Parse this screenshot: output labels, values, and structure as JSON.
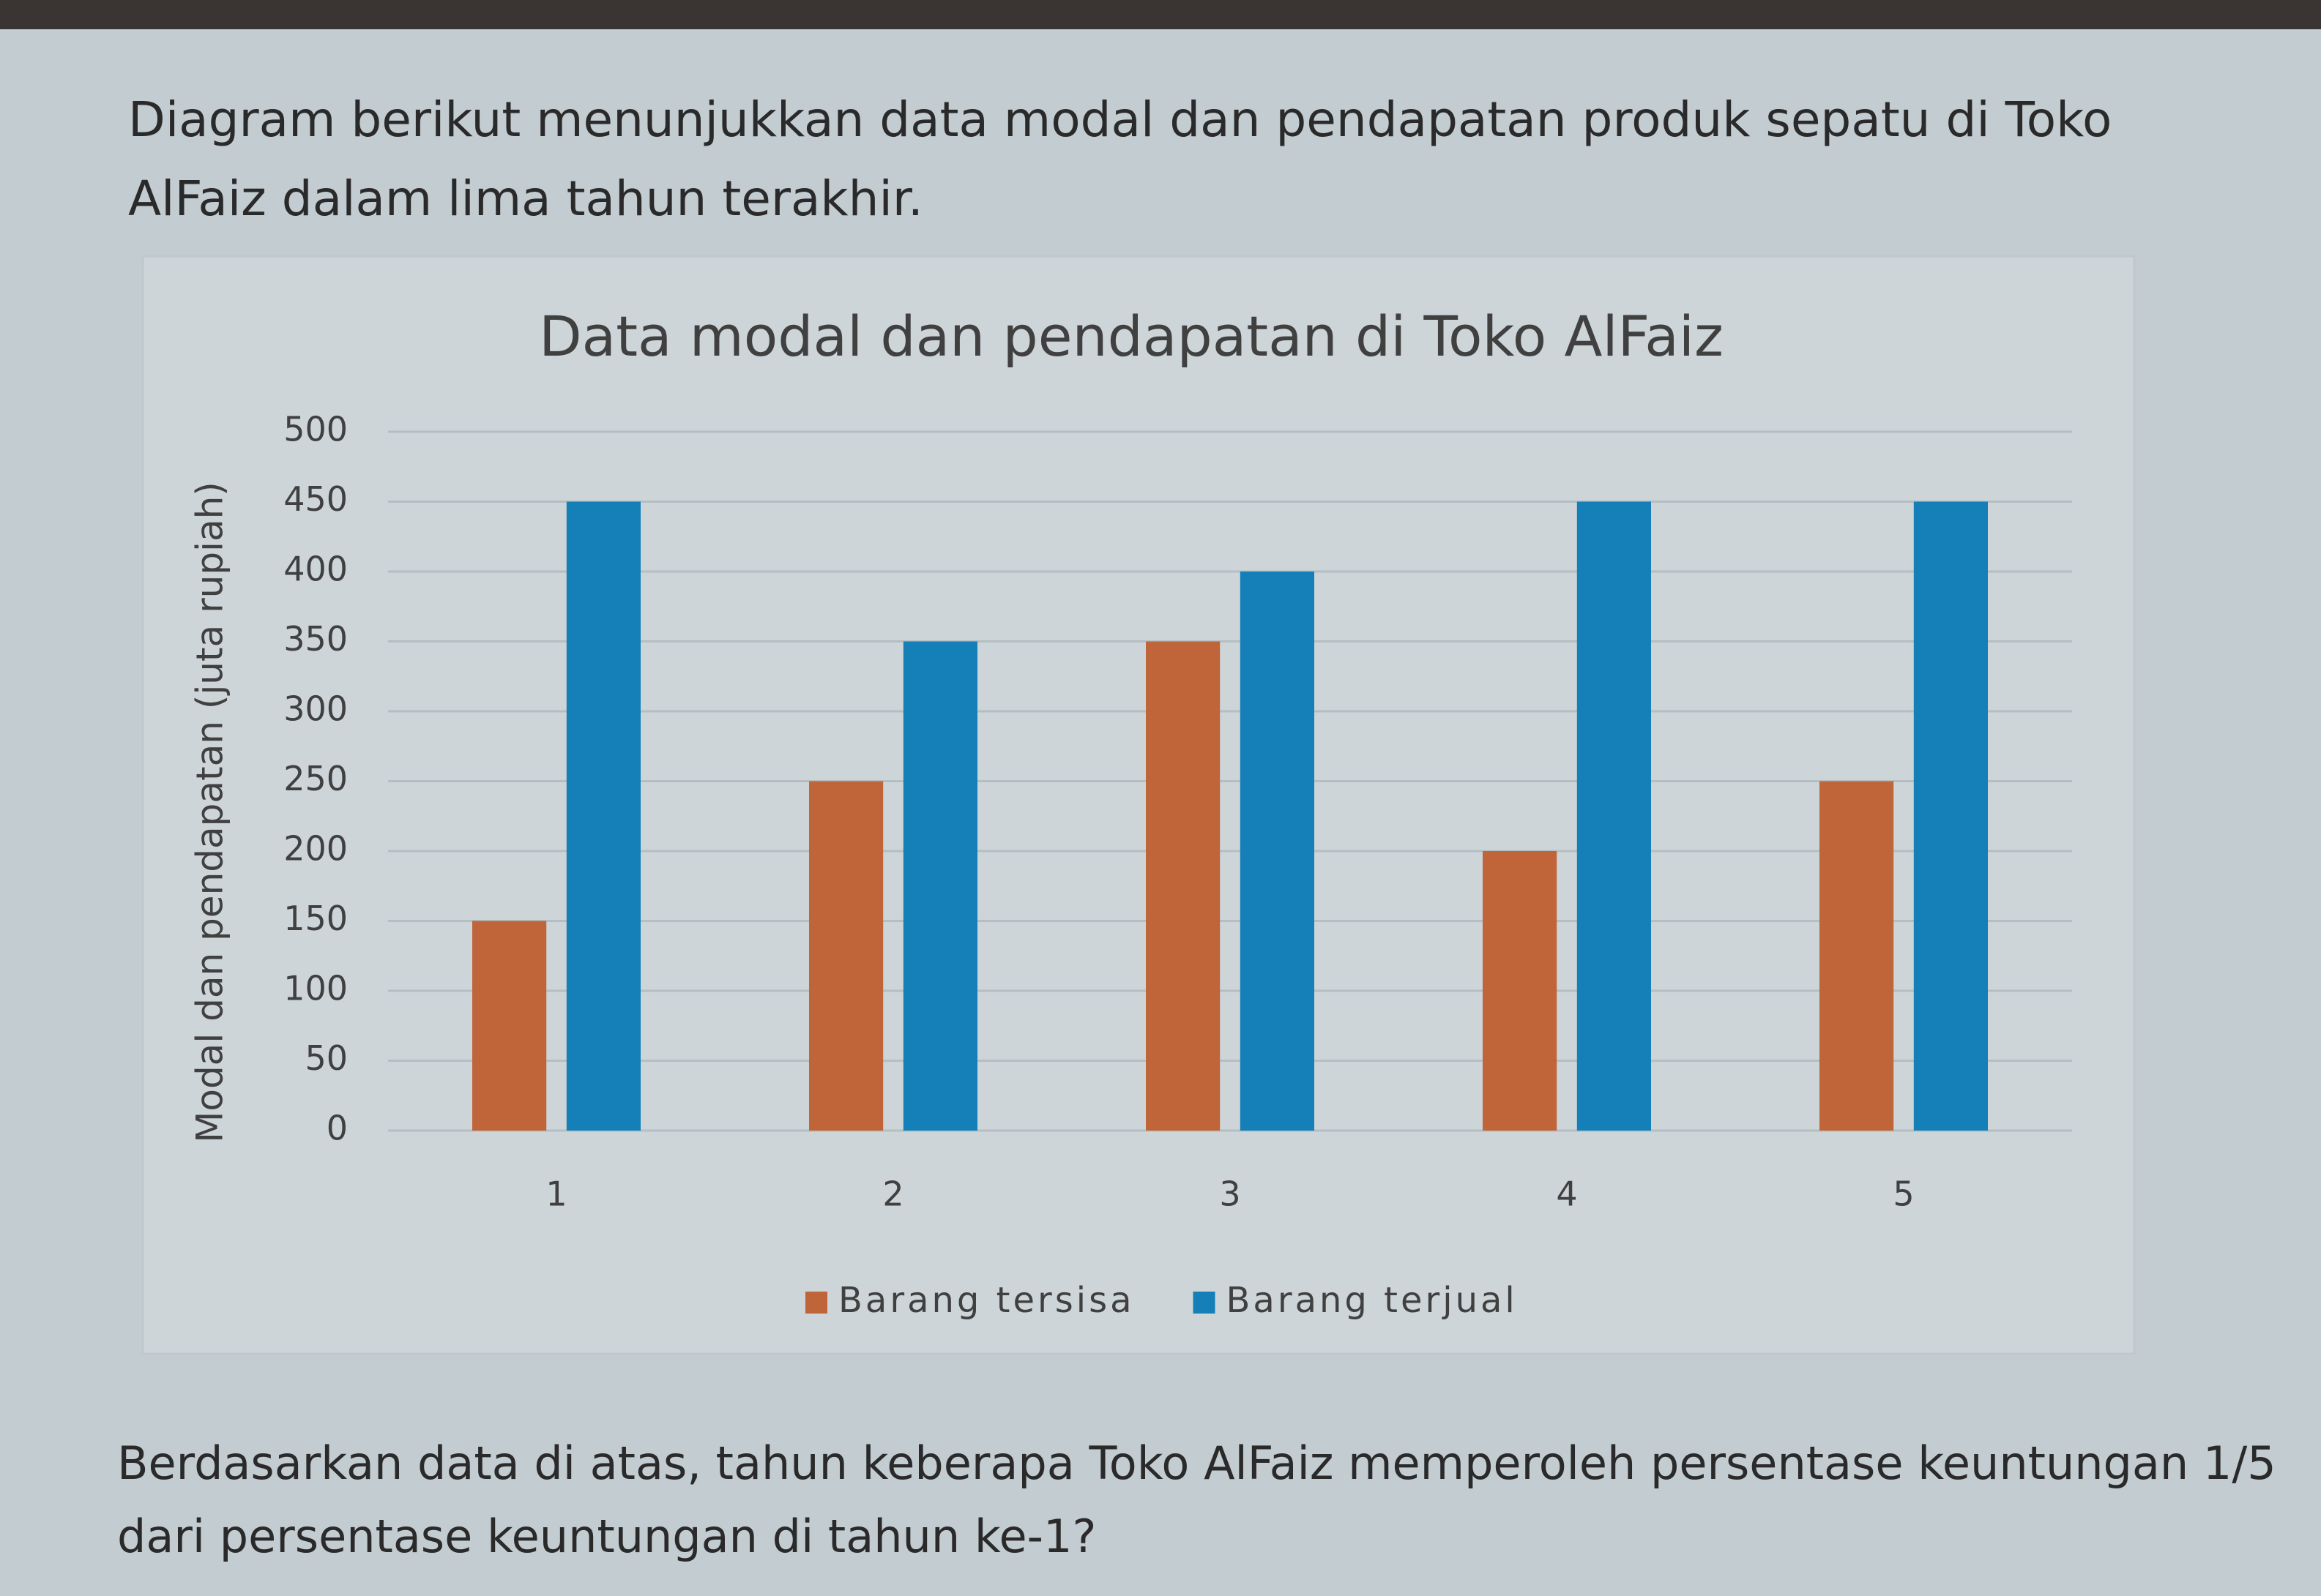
{
  "intro": "Diagram berikut menunjukkan data modal dan pendapatan produk sepatu di Toko AlFaiz dalam lima tahun terakhir.",
  "chart_data": {
    "type": "bar",
    "title": "Data modal dan pendapatan di Toko AlFaiz",
    "y_label": "Modal dan pendapatan (juta rupiah)",
    "categories": [
      "1",
      "2",
      "3",
      "4",
      "5"
    ],
    "series": [
      {
        "name": "Barang tersisa",
        "color": "#c0643a",
        "values": [
          150,
          250,
          350,
          200,
          250
        ]
      },
      {
        "name": "Barang terjual",
        "color": "#1580b8",
        "values": [
          450,
          350,
          400,
          450,
          450
        ]
      }
    ],
    "ylim": [
      0,
      500
    ],
    "yticks": [
      0,
      50,
      100,
      150,
      200,
      250,
      300,
      350,
      400,
      450,
      500
    ],
    "grid": true,
    "legend": "bottom"
  },
  "question": "Berdasarkan data di atas, tahun keberapa Toko AlFaiz memperoleh persentase keuntungan 1/5 dari persentase keuntungan di tahun ke-1?"
}
